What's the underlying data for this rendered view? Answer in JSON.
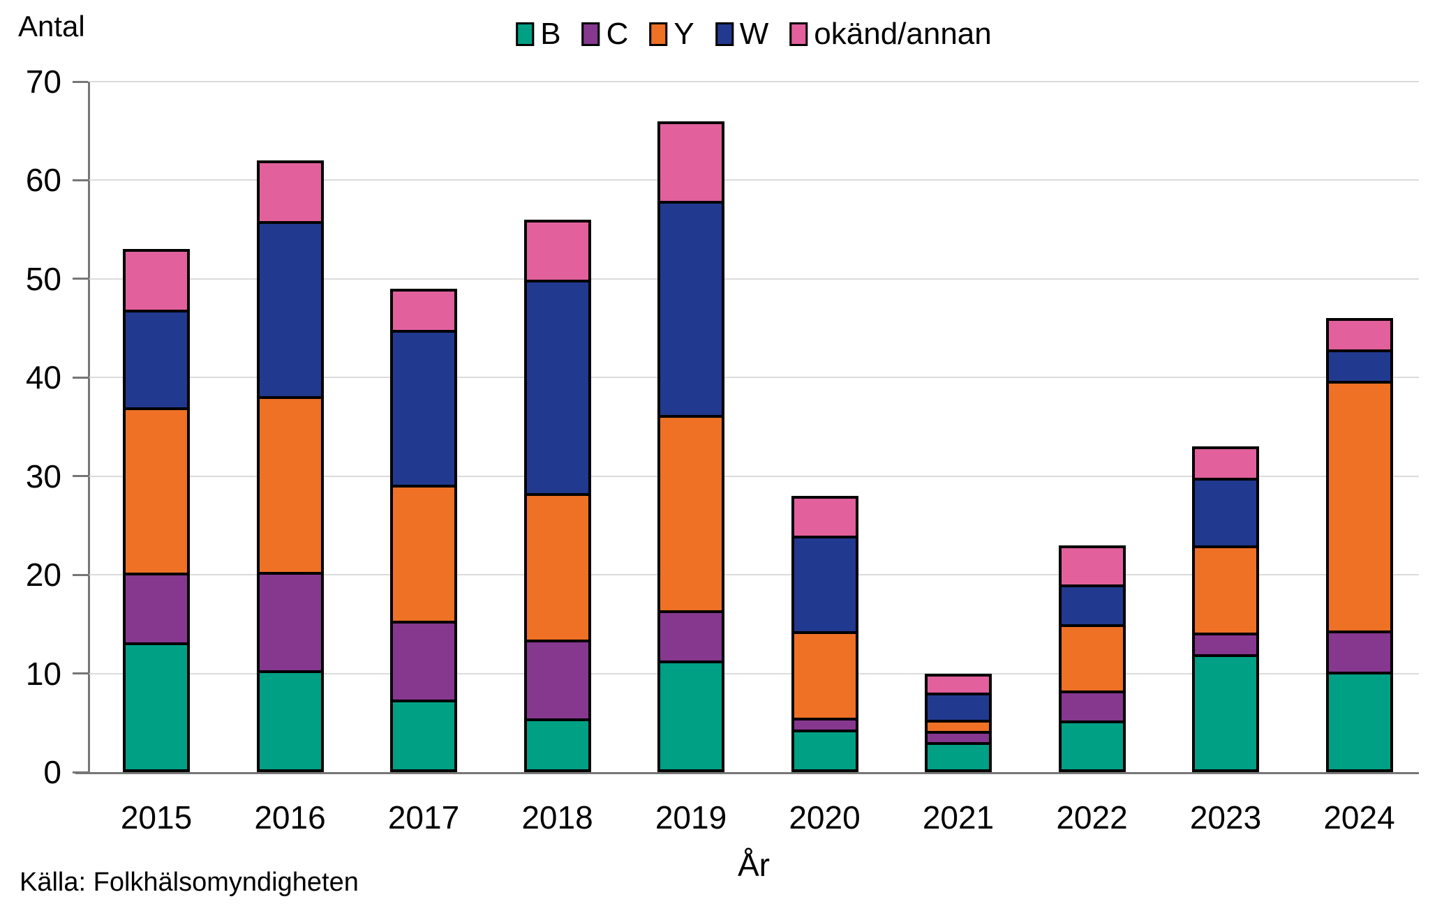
{
  "y_axis_title": "Antal",
  "x_axis_title": "År",
  "source": "Källa: Folkhälsomyndigheten",
  "axis_color": "#767676",
  "grid_color": "#dbdbdb",
  "chart_data": {
    "type": "bar",
    "stacked": true,
    "title": "",
    "xlabel": "År",
    "ylabel": "Antal",
    "ylim": [
      0,
      70
    ],
    "ytick_step": 10,
    "grid": true,
    "legend_position": "top",
    "categories": [
      "2015",
      "2016",
      "2017",
      "2018",
      "2019",
      "2020",
      "2021",
      "2022",
      "2023",
      "2024"
    ],
    "series": [
      {
        "name": "B",
        "color": "#00A085",
        "values": [
          13,
          10,
          7,
          5,
          11,
          4,
          3,
          5,
          12,
          10
        ]
      },
      {
        "name": "C",
        "color": "#86388F",
        "values": [
          7,
          10,
          8,
          8,
          5,
          1,
          1,
          3,
          2,
          4
        ]
      },
      {
        "name": "Y",
        "color": "#EE7125",
        "values": [
          17,
          18,
          14,
          15,
          20,
          9,
          1,
          7,
          9,
          26
        ]
      },
      {
        "name": "W",
        "color": "#213A8F",
        "values": [
          10,
          18,
          16,
          22,
          22,
          10,
          3,
          4,
          7,
          3
        ]
      },
      {
        "name": "okänd/annan",
        "color": "#E2619C",
        "values": [
          6,
          6,
          4,
          6,
          8,
          4,
          2,
          4,
          3,
          3
        ]
      }
    ],
    "totals": [
      53,
      62,
      49,
      56,
      66,
      28,
      10,
      23,
      33,
      46
    ]
  }
}
